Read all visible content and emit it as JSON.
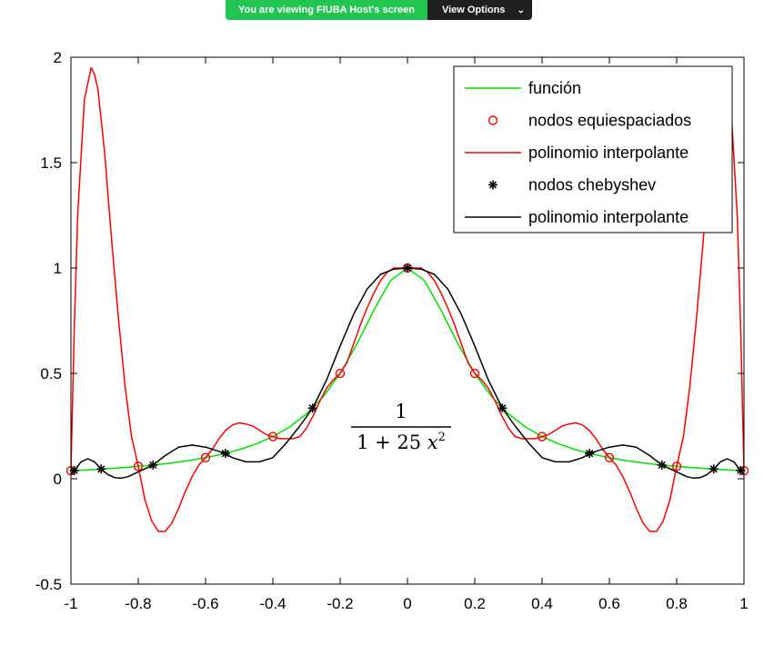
{
  "banner": {
    "status_text": "You are viewing FIUBA Host's screen",
    "options_label": "View Options",
    "options_icon": "chevron-down-icon",
    "status_color": "#23c552",
    "options_color": "#1f1f1f"
  },
  "formula": {
    "numerator": "1",
    "denominator_prefix": "1 + 25 ",
    "denominator_var": "x",
    "denominator_exp": "2"
  },
  "chart_data": {
    "type": "line",
    "title": "",
    "xlabel": "",
    "ylabel": "",
    "xlim": [
      -1,
      1
    ],
    "ylim": [
      -0.5,
      2
    ],
    "xticks": [
      -1,
      -0.8,
      -0.6,
      -0.4,
      -0.2,
      0,
      0.2,
      0.4,
      0.6,
      0.8,
      1
    ],
    "xtick_labels": [
      "-1",
      "-0.8",
      "-0.6",
      "-0.4",
      "-0.2",
      "0",
      "0.2",
      "0.4",
      "0.6",
      "0.8",
      "1"
    ],
    "yticks": [
      -0.5,
      0,
      0.5,
      1,
      1.5,
      2
    ],
    "ytick_labels": [
      "-0.5",
      "0",
      "0.5",
      "1",
      "1.5",
      "2"
    ],
    "grid": false,
    "legend_position": "top-right",
    "series": [
      {
        "name": "función",
        "style": "line",
        "color": "#00e000",
        "x": [
          -1,
          -0.95,
          -0.9,
          -0.85,
          -0.8,
          -0.75,
          -0.7,
          -0.65,
          -0.6,
          -0.55,
          -0.5,
          -0.45,
          -0.4,
          -0.35,
          -0.3,
          -0.25,
          -0.2,
          -0.15,
          -0.1,
          -0.05,
          0,
          0.05,
          0.1,
          0.15,
          0.2,
          0.25,
          0.3,
          0.35,
          0.4,
          0.45,
          0.5,
          0.55,
          0.6,
          0.65,
          0.7,
          0.75,
          0.8,
          0.85,
          0.9,
          0.95,
          1
        ],
        "y": [
          0.038,
          0.042,
          0.047,
          0.052,
          0.059,
          0.066,
          0.075,
          0.086,
          0.1,
          0.117,
          0.138,
          0.165,
          0.2,
          0.246,
          0.308,
          0.39,
          0.5,
          0.64,
          0.8,
          0.941,
          1,
          0.941,
          0.8,
          0.64,
          0.5,
          0.39,
          0.308,
          0.246,
          0.2,
          0.165,
          0.138,
          0.117,
          0.1,
          0.086,
          0.075,
          0.066,
          0.059,
          0.052,
          0.047,
          0.042,
          0.038
        ]
      },
      {
        "name": "nodos equiespaciados",
        "style": "circle-markers",
        "color": "#ff0000",
        "x": [
          -1,
          -0.8,
          -0.6,
          -0.4,
          -0.2,
          0,
          0.2,
          0.4,
          0.6,
          0.8,
          1
        ],
        "y": [
          0.038,
          0.059,
          0.1,
          0.2,
          0.5,
          1,
          0.5,
          0.2,
          0.1,
          0.059,
          0.038
        ]
      },
      {
        "name": "polinomio interpolante",
        "style": "line",
        "color": "#ff0000",
        "x": [
          -1,
          -0.99,
          -0.98,
          -0.96,
          -0.94,
          -0.93,
          -0.92,
          -0.9,
          -0.88,
          -0.86,
          -0.84,
          -0.82,
          -0.8,
          -0.78,
          -0.76,
          -0.74,
          -0.72,
          -0.7,
          -0.68,
          -0.66,
          -0.64,
          -0.62,
          -0.6,
          -0.58,
          -0.56,
          -0.54,
          -0.52,
          -0.5,
          -0.48,
          -0.46,
          -0.44,
          -0.42,
          -0.4,
          -0.38,
          -0.36,
          -0.34,
          -0.32,
          -0.3,
          -0.28,
          -0.26,
          -0.24,
          -0.22,
          -0.2,
          -0.18,
          -0.16,
          -0.14,
          -0.12,
          -0.1,
          -0.08,
          -0.06,
          -0.04,
          -0.02,
          0,
          0.02,
          0.04,
          0.06,
          0.08,
          0.1,
          0.12,
          0.14,
          0.16,
          0.18,
          0.2,
          0.22,
          0.24,
          0.26,
          0.28,
          0.3,
          0.32,
          0.34,
          0.36,
          0.38,
          0.4,
          0.42,
          0.44,
          0.46,
          0.48,
          0.5,
          0.52,
          0.54,
          0.56,
          0.58,
          0.6,
          0.62,
          0.64,
          0.66,
          0.68,
          0.7,
          0.72,
          0.74,
          0.76,
          0.78,
          0.8,
          0.82,
          0.84,
          0.86,
          0.88,
          0.9,
          0.92,
          0.93,
          0.94,
          0.96,
          0.98,
          0.99,
          1
        ],
        "y": [
          0.038,
          0.72,
          1.25,
          1.8,
          1.95,
          1.92,
          1.85,
          1.55,
          1.15,
          0.78,
          0.45,
          0.2,
          0.059,
          -0.1,
          -0.2,
          -0.25,
          -0.25,
          -0.21,
          -0.14,
          -0.06,
          0.01,
          0.065,
          0.1,
          0.14,
          0.19,
          0.23,
          0.255,
          0.265,
          0.26,
          0.25,
          0.23,
          0.21,
          0.2,
          0.19,
          0.19,
          0.19,
          0.2,
          0.24,
          0.3,
          0.37,
          0.43,
          0.47,
          0.5,
          0.55,
          0.64,
          0.73,
          0.81,
          0.88,
          0.94,
          0.98,
          1.0,
          1.0,
          1,
          1.0,
          1.0,
          0.98,
          0.94,
          0.88,
          0.81,
          0.73,
          0.64,
          0.55,
          0.5,
          0.47,
          0.43,
          0.37,
          0.3,
          0.24,
          0.2,
          0.19,
          0.19,
          0.19,
          0.2,
          0.21,
          0.23,
          0.25,
          0.26,
          0.265,
          0.255,
          0.23,
          0.19,
          0.14,
          0.1,
          0.065,
          0.01,
          -0.06,
          -0.14,
          -0.21,
          -0.25,
          -0.25,
          -0.2,
          -0.1,
          0.059,
          0.2,
          0.45,
          0.78,
          1.15,
          1.55,
          1.85,
          1.92,
          1.95,
          1.8,
          1.25,
          0.72,
          0.038
        ]
      },
      {
        "name": "nodos chebyshev",
        "style": "star-markers",
        "color": "#000000",
        "x": [
          -0.99,
          -0.91,
          -0.756,
          -0.541,
          -0.282,
          0,
          0.282,
          0.541,
          0.756,
          0.91,
          0.99
        ],
        "y": [
          0.039,
          0.046,
          0.065,
          0.12,
          0.335,
          1,
          0.335,
          0.12,
          0.065,
          0.046,
          0.039
        ]
      },
      {
        "name": "polinomio interpolante",
        "style": "line",
        "color": "#000000",
        "x": [
          -1,
          -0.99,
          -0.97,
          -0.95,
          -0.93,
          -0.91,
          -0.89,
          -0.87,
          -0.85,
          -0.83,
          -0.81,
          -0.79,
          -0.756,
          -0.72,
          -0.68,
          -0.64,
          -0.6,
          -0.56,
          -0.541,
          -0.52,
          -0.48,
          -0.44,
          -0.4,
          -0.36,
          -0.32,
          -0.282,
          -0.24,
          -0.2,
          -0.16,
          -0.12,
          -0.08,
          -0.04,
          0,
          0.04,
          0.08,
          0.12,
          0.16,
          0.2,
          0.24,
          0.282,
          0.32,
          0.36,
          0.4,
          0.44,
          0.48,
          0.52,
          0.541,
          0.56,
          0.6,
          0.64,
          0.68,
          0.72,
          0.756,
          0.79,
          0.81,
          0.83,
          0.85,
          0.87,
          0.89,
          0.91,
          0.93,
          0.95,
          0.97,
          0.99,
          1
        ],
        "y": [
          0.02,
          0.039,
          0.08,
          0.095,
          0.08,
          0.046,
          0.02,
          0.005,
          0.003,
          0.01,
          0.025,
          0.04,
          0.065,
          0.11,
          0.15,
          0.16,
          0.15,
          0.13,
          0.12,
          0.1,
          0.08,
          0.08,
          0.1,
          0.17,
          0.25,
          0.335,
          0.47,
          0.63,
          0.78,
          0.9,
          0.97,
          0.995,
          1,
          0.995,
          0.97,
          0.9,
          0.78,
          0.63,
          0.47,
          0.335,
          0.25,
          0.17,
          0.1,
          0.08,
          0.08,
          0.1,
          0.12,
          0.13,
          0.15,
          0.16,
          0.15,
          0.11,
          0.065,
          0.04,
          0.025,
          0.01,
          0.003,
          0.005,
          0.02,
          0.046,
          0.08,
          0.095,
          0.08,
          0.039,
          0.02
        ]
      }
    ]
  }
}
